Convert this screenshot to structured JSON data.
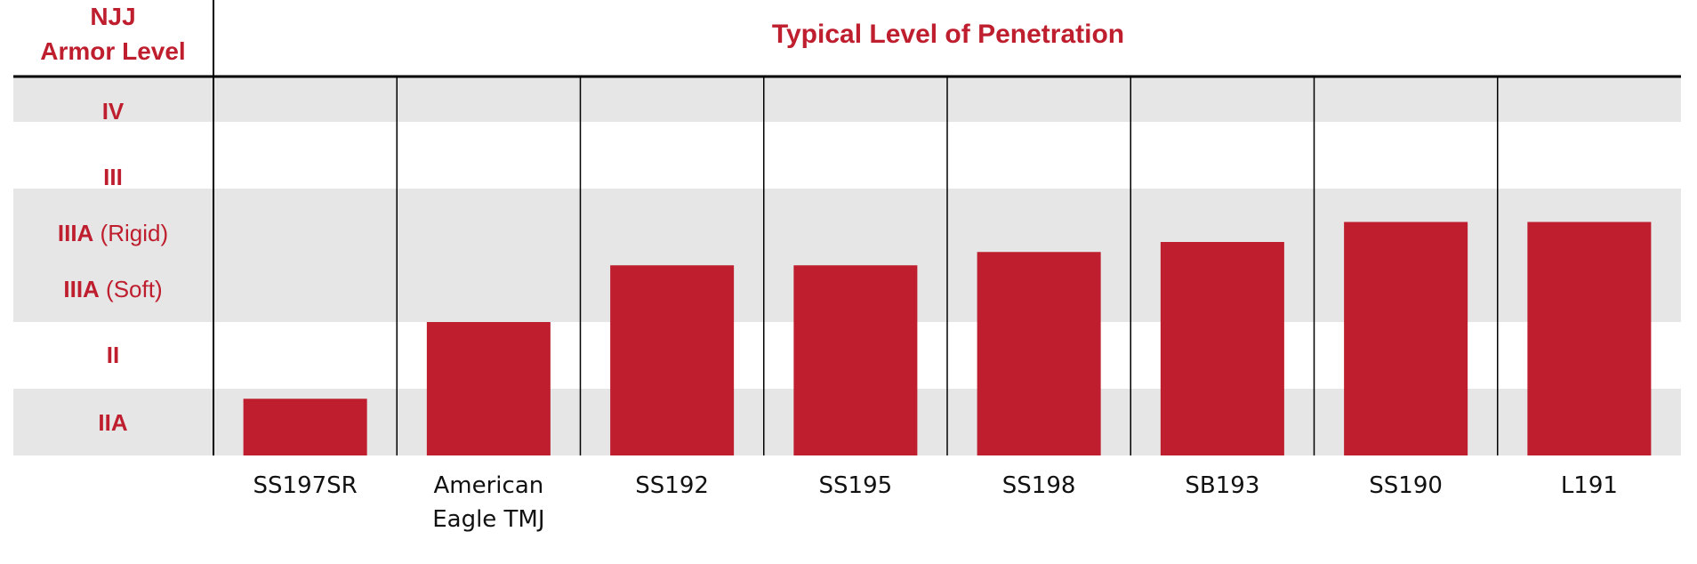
{
  "header": {
    "armor_title_line1": "NJJ",
    "armor_title_line2": "Armor Level",
    "chart_title": "Typical Level of Penetration"
  },
  "colors": {
    "accent": "#be1e2d",
    "band_shade": "#e6e6e6",
    "text": "#111111"
  },
  "chart_data": {
    "type": "bar",
    "title": "Typical Level of Penetration",
    "xlabel": "",
    "ylabel": "NJJ Armor Level",
    "y_levels": [
      {
        "bold": "IIA",
        "note": ""
      },
      {
        "bold": "II",
        "note": ""
      },
      {
        "bold": "IIIA",
        "note": "(Soft)"
      },
      {
        "bold": "IIIA",
        "note": "(Rigid)"
      },
      {
        "bold": "III",
        "note": ""
      },
      {
        "bold": "IV",
        "note": ""
      }
    ],
    "ylim": [
      0,
      6
    ],
    "grid": false,
    "legend": "none",
    "categories": [
      [
        "SS197SR"
      ],
      [
        "American",
        "Eagle TMJ"
      ],
      [
        "SS192"
      ],
      [
        "SS195"
      ],
      [
        "SS198"
      ],
      [
        "SB193"
      ],
      [
        "SS190"
      ],
      [
        "L191"
      ]
    ],
    "values": [
      0.85,
      2.0,
      2.85,
      2.85,
      3.05,
      3.2,
      3.5,
      3.5
    ]
  }
}
